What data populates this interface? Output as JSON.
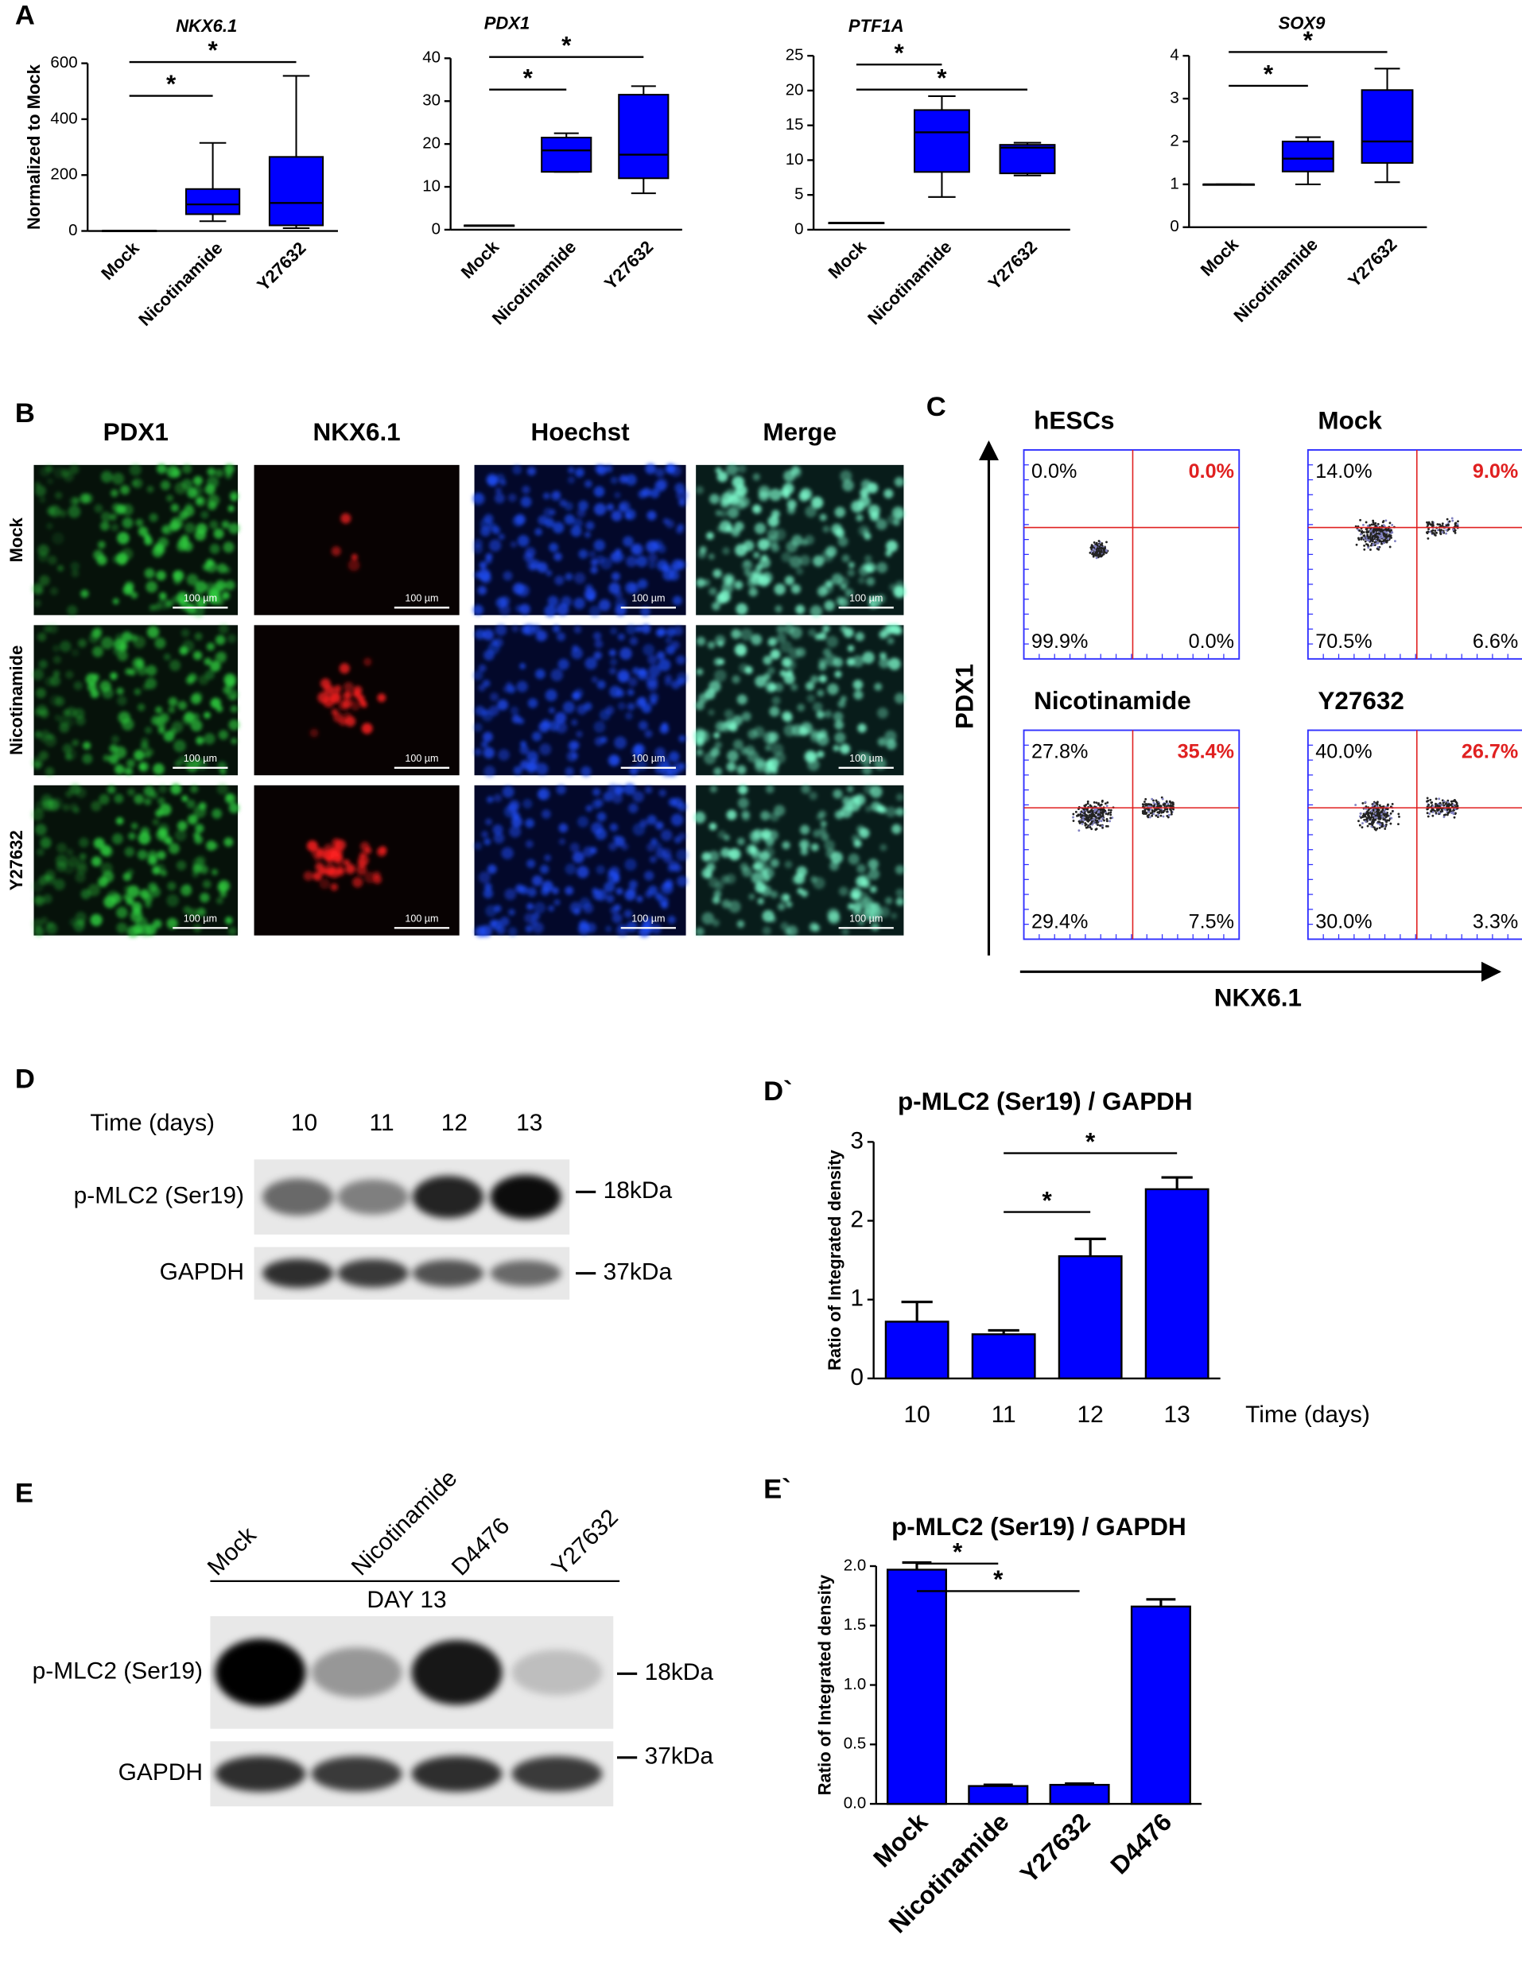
{
  "panel_labels": [
    "A",
    "B",
    "C",
    "D",
    "D`",
    "E",
    "E`"
  ],
  "chart_data": [
    {
      "type": "box",
      "title": "NKX6.1",
      "ylabel": "Normalized to Mock",
      "categories": [
        "Mock",
        "Nicotinamide",
        "Y27632"
      ],
      "values": [
        [
          1,
          1,
          1,
          1,
          1
        ],
        [
          35,
          60,
          95,
          150,
          315
        ],
        [
          10,
          20,
          100,
          265,
          555
        ]
      ],
      "color": "#0000ff",
      "ylim": [
        0,
        600
      ],
      "yticks": [
        0,
        200,
        400,
        600
      ],
      "annotations": [
        "*",
        "*"
      ]
    },
    {
      "type": "box",
      "title": "PDX1",
      "categories": [
        "Mock",
        "Nicotinamide",
        "Y27632"
      ],
      "values": [
        [
          1,
          1,
          1,
          1,
          1
        ],
        [
          13.5,
          13.5,
          18.5,
          21.5,
          22.5
        ],
        [
          8.5,
          12,
          17.5,
          31.5,
          33.5
        ]
      ],
      "color": "#0000ff",
      "ylim": [
        0,
        40
      ],
      "yticks": [
        0,
        10,
        20,
        30,
        40
      ],
      "annotations": [
        "*",
        "*"
      ]
    },
    {
      "type": "box",
      "title": "PTF1A",
      "categories": [
        "Mock",
        "Nicotinamide",
        "Y27632"
      ],
      "values": [
        [
          1,
          1,
          1,
          1,
          1
        ],
        [
          4.7,
          8.3,
          14,
          17.2,
          19.2
        ],
        [
          7.8,
          8.1,
          11.8,
          12.2,
          12.5
        ]
      ],
      "color": "#0000ff",
      "ylim": [
        0,
        25
      ],
      "yticks": [
        0,
        5,
        10,
        15,
        20,
        25
      ],
      "annotations": [
        "*",
        "*"
      ]
    },
    {
      "type": "box",
      "title": "SOX9",
      "categories": [
        "Mock",
        "Nicotinamide",
        "Y27632"
      ],
      "values": [
        [
          1,
          1,
          1,
          1,
          1
        ],
        [
          1,
          1.3,
          1.6,
          2,
          2.1
        ],
        [
          1.05,
          1.5,
          2,
          3.2,
          3.7
        ]
      ],
      "color": "#0000ff",
      "ylim": [
        0,
        4
      ],
      "yticks": [
        0,
        1,
        2,
        3,
        4
      ],
      "annotations": [
        "*",
        "*"
      ]
    },
    {
      "type": "bar",
      "title": "p-MLC2 (Ser19) / GAPDH",
      "ylabel": "Ratio of Integrated density",
      "xlabel": "Time (days)",
      "categories": [
        "10",
        "11",
        "12",
        "13"
      ],
      "values": [
        0.72,
        0.56,
        1.55,
        2.4
      ],
      "errors": [
        0.25,
        0.05,
        0.22,
        0.15
      ],
      "color": "#0000ff",
      "ylim": [
        0,
        3
      ],
      "yticks": [
        0,
        1,
        2,
        3
      ],
      "annotations": [
        "*",
        "*"
      ]
    },
    {
      "type": "bar",
      "title": "p-MLC2 (Ser19) / GAPDH",
      "ylabel": "Ratio of Integrated density",
      "categories": [
        "Mock",
        "Nicotinamide",
        "Y27632",
        "D4476"
      ],
      "values": [
        1.97,
        0.15,
        0.16,
        1.66
      ],
      "errors": [
        0.06,
        0.01,
        0.01,
        0.06
      ],
      "color": "#0000ff",
      "ylim": [
        0,
        2
      ],
      "yticks": [
        {
          "value": 0,
          "label": "0.0"
        },
        {
          "value": 0.5,
          "label": "0.5"
        },
        {
          "value": 1,
          "label": "1.0"
        },
        {
          "value": 1.5,
          "label": "1.5"
        },
        {
          "value": 2,
          "label": "2.0"
        }
      ],
      "annotations": [
        "*",
        "*"
      ]
    }
  ],
  "microscopy": {
    "columns": [
      "PDX1",
      "NKX6.1",
      "Hoechst",
      "Merge"
    ],
    "rows": [
      "Mock",
      "Nicotinamide",
      "Y27632"
    ],
    "scale_bar": "100 µm"
  },
  "flow": {
    "ylabel": "PDX1",
    "xlabel": "NKX6.1",
    "panels": [
      {
        "title": "hESCs",
        "quadrants": [
          "0.0%",
          "0.0%",
          "99.9%",
          "0.0%"
        ]
      },
      {
        "title": "Mock",
        "quadrants": [
          "14.0%",
          "9.0%",
          "70.5%",
          "6.6%"
        ]
      },
      {
        "title": "Nicotinamide",
        "quadrants": [
          "27.8%",
          "35.4%",
          "29.4%",
          "7.5%"
        ]
      },
      {
        "title": "Y27632",
        "quadrants": [
          "40.0%",
          "26.7%",
          "30.0%",
          "3.3%"
        ]
      }
    ]
  },
  "blot_d": {
    "header": "Time (days)",
    "lanes": [
      "10",
      "11",
      "12",
      "13"
    ],
    "rows": [
      "p-MLC2 (Ser19)",
      "GAPDH"
    ],
    "sizes": [
      "18kDa",
      "37kDa"
    ]
  },
  "blot_e": {
    "lanes": [
      "Mock",
      "Nicotinamide",
      "D4476",
      "Y27632"
    ],
    "day": "DAY 13",
    "rows": [
      "p-MLC2 (Ser19)",
      "GAPDH"
    ],
    "sizes": [
      "18kDa",
      "37kDa"
    ]
  }
}
